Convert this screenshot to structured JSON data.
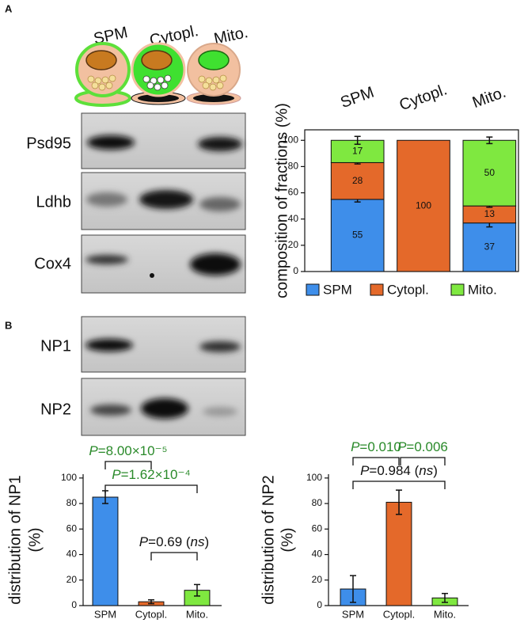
{
  "panels": [
    "A",
    "B"
  ],
  "fractions": [
    "SPM",
    "Cytopl.",
    "Mito."
  ],
  "blots": [
    {
      "label": "Psd95"
    },
    {
      "label": "Ldhb"
    },
    {
      "label": "Cox4"
    },
    {
      "label": "NP1"
    },
    {
      "label": "NP2"
    }
  ],
  "chart_data": [
    {
      "type": "bar",
      "stacked": true,
      "categories": [
        "SPM",
        "Cytopl.",
        "Mito."
      ],
      "ylabel": [
        "composition of fractions (%)"
      ],
      "ylim": [
        0,
        108
      ],
      "yticks": [
        0,
        20,
        40,
        60,
        80,
        100
      ],
      "legend": "bottom",
      "series": [
        {
          "name": "SPM",
          "color": "#3e8eea",
          "values": [
            55,
            0,
            37
          ],
          "errors": [
            2,
            0,
            3
          ]
        },
        {
          "name": "Cytopl.",
          "color": "#e4692a",
          "values": [
            28,
            100,
            13
          ],
          "errors": [
            1,
            0,
            1
          ]
        },
        {
          "name": "Mito.",
          "color": "#7fe840",
          "values": [
            17,
            0,
            50
          ],
          "errors": [
            3,
            0,
            2.5
          ]
        }
      ]
    },
    {
      "type": "bar",
      "categories": [
        "SPM",
        "Cytopl.",
        "Mito."
      ],
      "ylabel": [
        "distribution of NP1",
        "(%)"
      ],
      "ylim": [
        0,
        103
      ],
      "yticks": [
        0,
        20,
        40,
        60,
        80,
        100
      ],
      "values": [
        85,
        3,
        12
      ],
      "errors": [
        5,
        1.5,
        4.5
      ],
      "colors": [
        "#3e8eea",
        "#e4692a",
        "#7fe840"
      ],
      "annotations": [
        {
          "from": 0,
          "to": 1,
          "color": "#2a8a2a",
          "segments": [
            {
              "text": "P",
              "italic": true
            },
            {
              "text": "=8.00×10⁻⁵"
            }
          ]
        },
        {
          "from": 0,
          "to": 2,
          "color": "#2a8a2a",
          "segments": [
            {
              "text": "P",
              "italic": true
            },
            {
              "text": "=1.62×10⁻⁴"
            }
          ]
        },
        {
          "from": 1,
          "to": 2,
          "color": "#111111",
          "segments": [
            {
              "text": "P",
              "italic": true
            },
            {
              "text": "=0.69 ("
            },
            {
              "text": "ns",
              "italic": true
            },
            {
              "text": ")"
            }
          ]
        }
      ]
    },
    {
      "type": "bar",
      "categories": [
        "SPM",
        "Cytopl.",
        "Mito."
      ],
      "ylabel": [
        "distribution of NP2",
        "(%)"
      ],
      "ylim": [
        0,
        103
      ],
      "yticks": [
        0,
        20,
        40,
        60,
        80,
        100
      ],
      "values": [
        13,
        81,
        6
      ],
      "errors": [
        10.5,
        9.5,
        3.5
      ],
      "colors": [
        "#3e8eea",
        "#e4692a",
        "#7fe840"
      ],
      "annotations": [
        {
          "from": 0,
          "to": 1,
          "color": "#2a8a2a",
          "segments": [
            {
              "text": "P",
              "italic": true
            },
            {
              "text": "=0.010"
            }
          ]
        },
        {
          "from": 1,
          "to": 2,
          "color": "#2a8a2a",
          "segments": [
            {
              "text": "P",
              "italic": true
            },
            {
              "text": "=0.006"
            }
          ]
        },
        {
          "from": 0,
          "to": 2,
          "color": "#111111",
          "segments": [
            {
              "text": "P",
              "italic": true
            },
            {
              "text": "=0.984 ("
            },
            {
              "text": "ns",
              "italic": true
            },
            {
              "text": ")"
            }
          ]
        }
      ]
    }
  ]
}
